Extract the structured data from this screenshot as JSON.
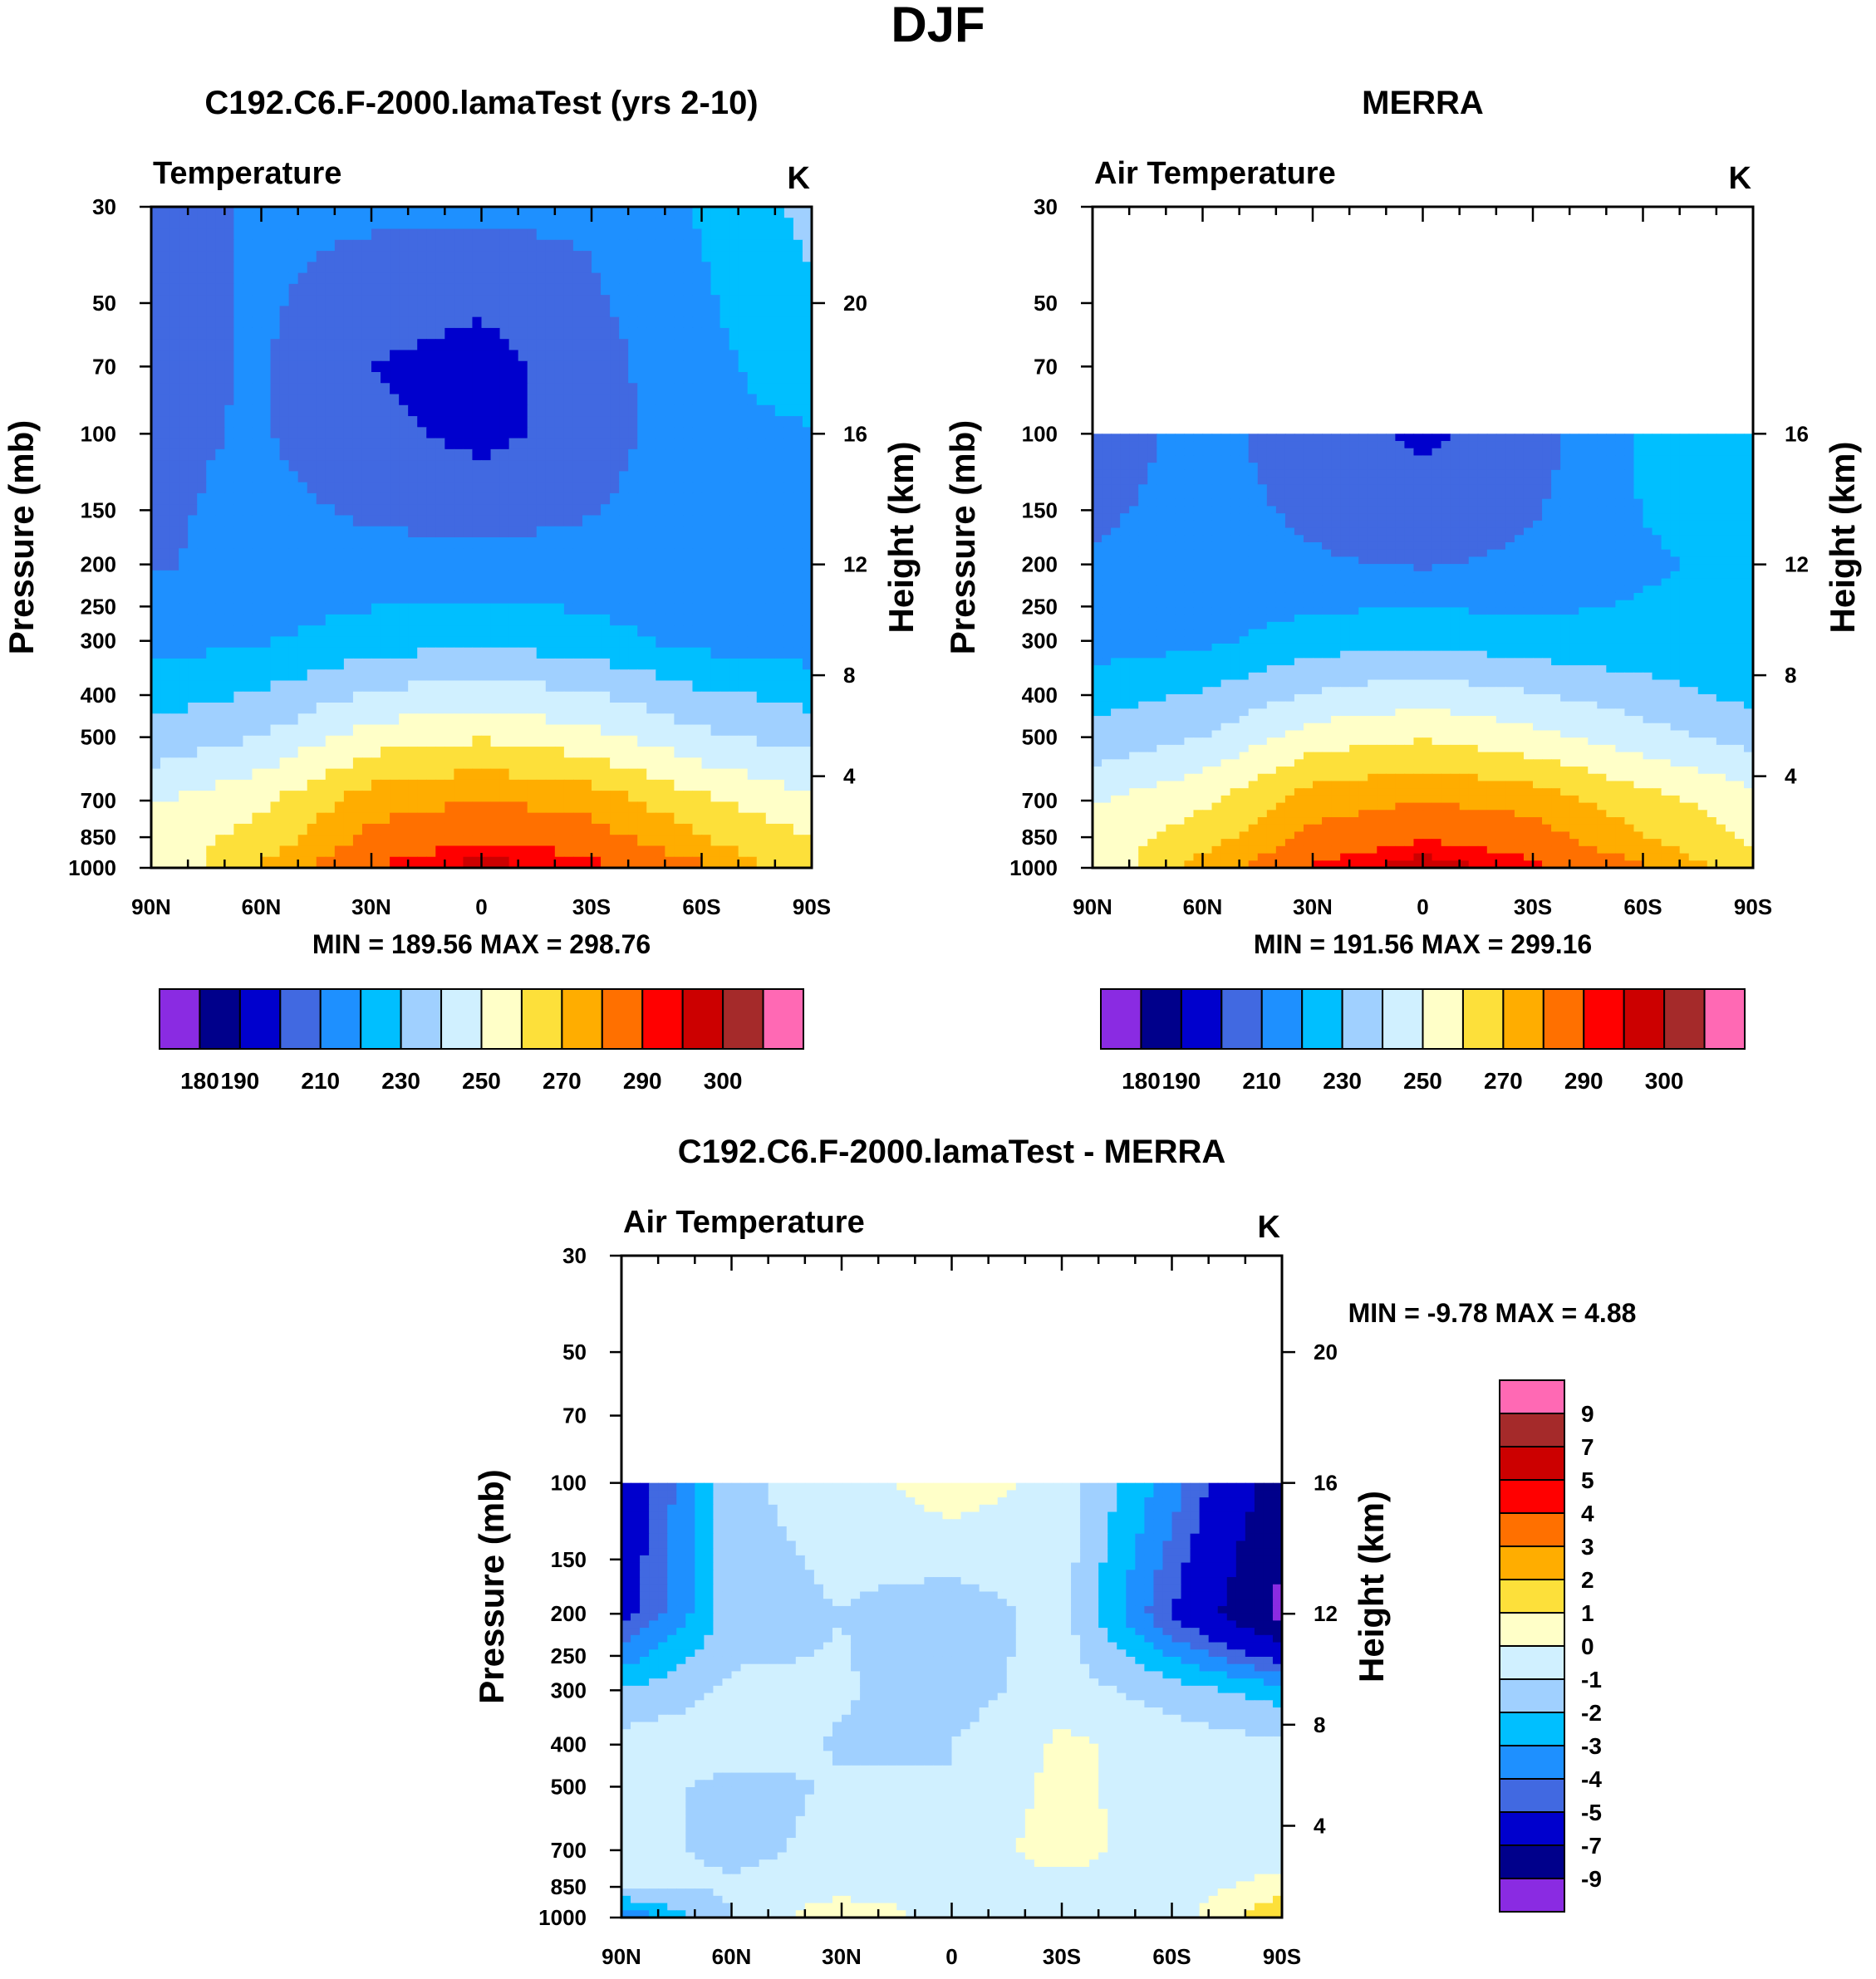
{
  "figure_title": "DJF",
  "colors": {
    "abs_palette": [
      "#8a2be2",
      "#00008b",
      "#0000cd",
      "#4169e1",
      "#1e90ff",
      "#00bfff",
      "#a0d0ff",
      "#d0f0ff",
      "#ffffc8",
      "#fde03a",
      "#ffad00",
      "#ff7000",
      "#ff0000",
      "#cc0000",
      "#a52a2a",
      "#ff69b4"
    ],
    "diff_palette": [
      "#8a2be2",
      "#00008b",
      "#0000cd",
      "#4169e1",
      "#1e90ff",
      "#00bfff",
      "#a0d0ff",
      "#d0f0ff",
      "#ffffc8",
      "#fde03a",
      "#ffad00",
      "#ff7000",
      "#ff0000",
      "#cc0000",
      "#a52a2a",
      "#ff69b4"
    ]
  },
  "chart_data": [
    {
      "type": "heatmap",
      "title": "C192.C6.F-2000.lamaTest (yrs 2-10)",
      "left_label": "Temperature",
      "units": "K",
      "xlabel": "",
      "ylabel_left": "Pressure (mb)",
      "ylabel_right": "Height (km)",
      "x_ticks": [
        "90N",
        "60N",
        "30N",
        "0",
        "30S",
        "60S",
        "90S"
      ],
      "y_ticks": [
        "30",
        "50",
        "70",
        "100",
        "150",
        "200",
        "250",
        "300",
        "400",
        "500",
        "700",
        "850",
        "1000"
      ],
      "height_ticks": [
        "20",
        "16",
        "12",
        "8",
        "4"
      ],
      "xlim": [
        90,
        -90
      ],
      "ylim": [
        1000,
        30
      ],
      "stats": "MIN = 189.56  MAX = 298.76",
      "colorbar_labels": [
        "180",
        "190",
        "210",
        "230",
        "250",
        "270",
        "290",
        "300"
      ],
      "lat": [
        90,
        60,
        30,
        0,
        -30,
        -60,
        -90
      ],
      "pressure": [
        30,
        70,
        100,
        200,
        300,
        400,
        500,
        700,
        850,
        1000
      ],
      "values": [
        [
          205,
          212,
          212,
          212,
          212,
          221,
          233
        ],
        [
          207,
          211,
          200,
          195,
          206,
          217,
          226
        ],
        [
          208,
          211,
          203,
          197,
          205,
          217,
          219
        ],
        [
          209,
          213,
          213,
          213,
          213,
          214,
          215
        ],
        [
          216,
          219,
          225,
          228,
          224,
          217,
          214
        ],
        [
          226,
          231,
          241,
          246,
          241,
          232,
          227
        ],
        [
          233,
          240,
          255,
          259,
          253,
          242,
          236
        ],
        [
          249,
          258,
          275,
          280,
          276,
          262,
          252
        ],
        [
          254,
          263,
          283,
          289,
          285,
          270,
          260
        ],
        [
          250,
          272,
          290,
          298,
          292,
          282,
          260
        ]
      ]
    },
    {
      "type": "heatmap",
      "title": "MERRA",
      "left_label": "Air Temperature",
      "units": "K",
      "xlabel": "",
      "ylabel_left": "Pressure (mb)",
      "ylabel_right": "Height (km)",
      "x_ticks": [
        "90N",
        "60N",
        "30N",
        "0",
        "30S",
        "60S",
        "90S"
      ],
      "y_ticks": [
        "30",
        "50",
        "70",
        "100",
        "150",
        "200",
        "250",
        "300",
        "400",
        "500",
        "700",
        "850",
        "1000"
      ],
      "height_ticks": [
        "16",
        "12",
        "8",
        "4"
      ],
      "xlim": [
        90,
        -90
      ],
      "ylim": [
        1000,
        30
      ],
      "stats": "MIN = 191.56  MAX = 299.16",
      "colorbar_labels": [
        "180",
        "190",
        "210",
        "230",
        "250",
        "270",
        "290",
        "300"
      ],
      "lat": [
        90,
        60,
        30,
        0,
        -30,
        -60,
        -90
      ],
      "pressure": [
        100,
        200,
        300,
        400,
        500,
        700,
        850,
        1000
      ],
      "values": [
        [
          205,
          213,
          205,
          198,
          205,
          222,
          226
        ],
        [
          211,
          213,
          211,
          209,
          212,
          219,
          222
        ],
        [
          215,
          218,
          225,
          228,
          224,
          222,
          222
        ],
        [
          226,
          231,
          241,
          246,
          241,
          235,
          227
        ],
        [
          233,
          240,
          255,
          259,
          253,
          244,
          236
        ],
        [
          249,
          258,
          275,
          280,
          276,
          264,
          254
        ],
        [
          254,
          265,
          283,
          289,
          285,
          270,
          258
        ],
        [
          250,
          275,
          291,
          299,
          292,
          282,
          262
        ]
      ]
    },
    {
      "type": "heatmap",
      "title": "C192.C6.F-2000.lamaTest - MERRA",
      "left_label": "Air Temperature",
      "units": "K",
      "xlabel": "",
      "ylabel_left": "Pressure (mb)",
      "ylabel_right": "Height (km)",
      "x_ticks": [
        "90N",
        "60N",
        "30N",
        "0",
        "30S",
        "60S",
        "90S"
      ],
      "y_ticks": [
        "30",
        "50",
        "70",
        "100",
        "150",
        "200",
        "250",
        "300",
        "400",
        "500",
        "700",
        "850",
        "1000"
      ],
      "height_ticks": [
        "20",
        "16",
        "12",
        "8",
        "4"
      ],
      "xlim": [
        90,
        -90
      ],
      "ylim": [
        1000,
        30
      ],
      "stats": "MIN =  -9.78  MAX =   4.88",
      "colorbar_labels": [
        "9",
        "7",
        "5",
        "4",
        "3",
        "2",
        "1",
        "0",
        "-1",
        "-2",
        "-3",
        "-4",
        "-5",
        "-7",
        "-9"
      ],
      "lat": [
        90,
        60,
        30,
        0,
        -30,
        -60,
        -90
      ],
      "pressure": [
        100,
        200,
        300,
        400,
        500,
        700,
        850,
        1000
      ],
      "values": [
        [
          -6.5,
          -1.2,
          -0.5,
          0.6,
          -0.4,
          -3.5,
          -8.0
        ],
        [
          -5.5,
          -1.5,
          -1.0,
          -1.6,
          -0.6,
          -5.0,
          -9.5
        ],
        [
          -2.0,
          -0.8,
          -0.9,
          -1.5,
          -0.5,
          -1.5,
          -2.5
        ],
        [
          -0.5,
          -0.4,
          -1.1,
          -1.0,
          0.2,
          -0.4,
          -0.8
        ],
        [
          -0.5,
          -1.3,
          -0.9,
          -1.0,
          0.3,
          -0.6,
          -0.7
        ],
        [
          -0.7,
          -1.2,
          -0.8,
          -0.5,
          0.4,
          -0.5,
          -0.6
        ],
        [
          -0.8,
          -0.9,
          -0.6,
          -0.4,
          -0.3,
          -0.6,
          0.5
        ],
        [
          -4.0,
          -1.0,
          1.0,
          -0.5,
          -0.5,
          -0.5,
          2.0
        ]
      ]
    }
  ]
}
